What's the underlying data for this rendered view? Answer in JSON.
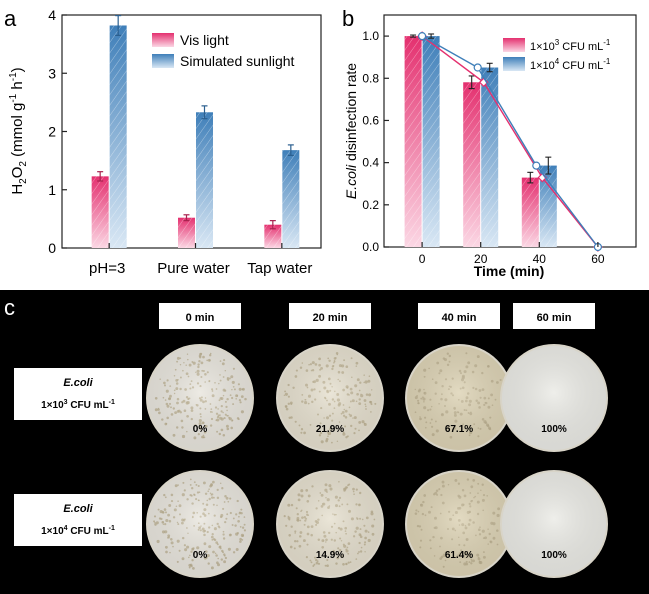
{
  "colors": {
    "pink": "#e4306f",
    "blue": "#3f7fb9",
    "axis": "#222222",
    "photo_bg": "#000000",
    "label_box": "#ffffff",
    "plate_rim": "#d8d4c8"
  },
  "panels": {
    "a": {
      "letter": "a"
    },
    "b": {
      "letter": "b"
    },
    "c": {
      "letter": "c"
    }
  },
  "chart_data": [
    {
      "type": "bar",
      "panel": "a",
      "categories": [
        "pH=3",
        "Pure water",
        "Tap water"
      ],
      "ylabel": "H2O2 (mmol g-1 h-1)",
      "ylabel_parts": {
        "main": "H",
        "sub1": "2",
        "mid": "O",
        "sub2": "2",
        "units_open": " (mmol g",
        "sup1": "-1",
        "units_mid": " h",
        "sup2": "-1",
        "units_close": ")"
      },
      "ylim": [
        0,
        4
      ],
      "yticks": [
        "0",
        "1",
        "2",
        "3",
        "4"
      ],
      "legend_position": "top-right",
      "series": [
        {
          "name": "Vis light",
          "values": [
            1.23,
            0.52,
            0.4
          ],
          "errors": [
            0.08,
            0.05,
            0.07
          ],
          "color": "#e4306f"
        },
        {
          "name": "Simulated sunlight",
          "values": [
            3.82,
            2.33,
            1.68
          ],
          "errors": [
            0.17,
            0.11,
            0.09
          ],
          "color": "#3f7fb9"
        }
      ]
    },
    {
      "type": "bar",
      "panel": "b",
      "x": [
        0,
        20,
        40,
        60
      ],
      "xlabel": "Time (min)",
      "ylabel": "E.coli disinfection rate",
      "ylabel_italic": "E.coli",
      "ylabel_rest": " disinfection rate",
      "ylim": [
        0,
        1.1
      ],
      "yticks": [
        "0.0",
        "0.2",
        "0.4",
        "0.6",
        "0.8",
        "1.0"
      ],
      "xticks": [
        "0",
        "20",
        "40",
        "60"
      ],
      "legend_position": "top-right",
      "series": [
        {
          "name": "1×10³ CFU mL⁻¹",
          "name_parts": {
            "pre": "1×10",
            "sup": "3",
            "mid": " CFU mL",
            "sup2": "-1"
          },
          "values": [
            1.0,
            0.781,
            0.329,
            0.0
          ],
          "errors": [
            0.005,
            0.03,
            0.025,
            0
          ],
          "color": "#e4306f",
          "overlay": "line"
        },
        {
          "name": "1×10⁴ CFU mL⁻¹",
          "name_parts": {
            "pre": "1×10",
            "sup": "4",
            "mid": " CFU mL",
            "sup2": "-1"
          },
          "values": [
            1.0,
            0.851,
            0.386,
            0.0
          ],
          "errors": [
            0.01,
            0.02,
            0.04,
            0
          ],
          "color": "#3f7fb9",
          "overlay": "line"
        }
      ]
    }
  ],
  "photo_panel": {
    "times": [
      "0 min",
      "20 min",
      "40 min",
      "60 min"
    ],
    "rows": [
      {
        "organism": "E.coli",
        "conc_pre": "1×10",
        "conc_sup": "3",
        "conc_post": " CFU mL",
        "conc_sup2": "-1",
        "rates": [
          "0%",
          "21.9%",
          "67.1%",
          "100%"
        ]
      },
      {
        "organism": "E.coli",
        "conc_pre": "1×10",
        "conc_sup": "4",
        "conc_post": " CFU mL",
        "conc_sup2": "-1",
        "rates": [
          "0%",
          "14.9%",
          "61.4%",
          "100%"
        ]
      }
    ],
    "plate_tints": [
      "#e9e6de",
      "#e6e0cf",
      "#ddd3b5",
      "#ebebe6"
    ],
    "colony_density": [
      0.85,
      0.7,
      0.55,
      0
    ]
  }
}
